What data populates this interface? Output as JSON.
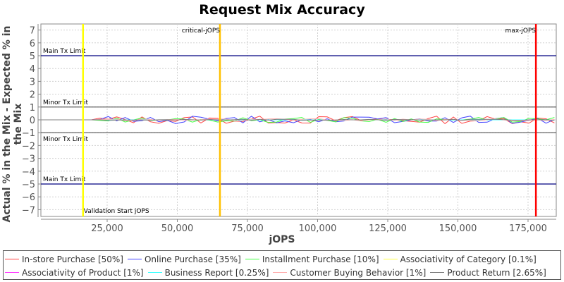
{
  "chart": {
    "title": "Request Mix Accuracy",
    "xlabel": "jOPS",
    "ylabel": "Actual % in the Mix - Expected % in the Mix"
  },
  "legend": {
    "row1": [
      {
        "label": "In-store Purchase [50%]",
        "color": "#ff4040"
      },
      {
        "label": "Online Purchase [35%]",
        "color": "#4040ff"
      },
      {
        "label": "Installment Purchase [10%]",
        "color": "#40ff40"
      },
      {
        "label": "Associativity of Category [0.1%]",
        "color": "#ffff40"
      }
    ],
    "row2": [
      {
        "label": "Associativity of Product [1%]",
        "color": "#ff40ff"
      },
      {
        "label": "Business Report [0.25%]",
        "color": "#40ffff"
      },
      {
        "label": "Customer Buying Behavior [1%]",
        "color": "#ffafaf"
      },
      {
        "label": "Product Return [2.65%]",
        "color": "#808080"
      }
    ]
  },
  "annotations": {
    "main_tx_upper": "Main Tx Limit",
    "minor_tx_upper": "Minor Tx Limit",
    "minor_tx_lower": "Minor Tx Limit",
    "main_tx_lower": "Main Tx Limit",
    "validation_start": "Validation Start jOPS",
    "critical": "critical-jOPS",
    "max": "max-jOPS"
  },
  "chart_data": {
    "type": "line",
    "title": "Request Mix Accuracy",
    "xlabel": "jOPS",
    "ylabel": "Actual % in the Mix - Expected % in the Mix",
    "xlim": [
      1400,
      185000
    ],
    "ylim": [
      -7.5,
      7.5
    ],
    "x_ticks": [
      "25,000",
      "50,000",
      "75,000",
      "100,000",
      "125,000",
      "150,000",
      "175,000"
    ],
    "y_ticks": [
      7,
      6,
      5,
      4,
      3,
      2,
      1,
      0,
      -1,
      -2,
      -3,
      -4,
      -5,
      -6,
      -7
    ],
    "grid": true,
    "legend_position": "bottom",
    "horizontal_lines": [
      {
        "label": "Main Tx Limit",
        "y": 5,
        "color": "#000080"
      },
      {
        "label": "Minor Tx Limit",
        "y": 1,
        "color": "#555555"
      },
      {
        "label": "Minor Tx Limit",
        "y": -1,
        "color": "#555555"
      },
      {
        "label": "Main Tx Limit",
        "y": -5,
        "color": "#000080"
      }
    ],
    "vertical_lines": [
      {
        "label": "Validation Start jOPS",
        "x": 16400,
        "color": "#ffff00"
      },
      {
        "label": "critical-jOPS",
        "x": 65200,
        "color": "#ffc000"
      },
      {
        "label": "max-jOPS",
        "x": 177800,
        "color": "#ff0000"
      }
    ],
    "series": [
      {
        "name": "In-store Purchase [50%]",
        "color": "#ff4040",
        "approx_range": [
          -0.3,
          0.3
        ]
      },
      {
        "name": "Online Purchase [35%]",
        "color": "#4040ff",
        "approx_range": [
          -0.3,
          0.3
        ]
      },
      {
        "name": "Installment Purchase [10%]",
        "color": "#40ff40",
        "approx_range": [
          -0.15,
          0.2
        ]
      },
      {
        "name": "Associativity of Category [0.1%]",
        "color": "#ffff40",
        "approx_range": [
          0,
          0
        ]
      },
      {
        "name": "Associativity of Product [1%]",
        "color": "#ff40ff",
        "approx_range": [
          0,
          0
        ]
      },
      {
        "name": "Business Report [0.25%]",
        "color": "#40ffff",
        "approx_range": [
          0,
          0
        ]
      },
      {
        "name": "Customer Buying Behavior [1%]",
        "color": "#ffafaf",
        "approx_range": [
          -0.1,
          0.1
        ]
      },
      {
        "name": "Product Return [2.65%]",
        "color": "#808080",
        "approx_range": [
          -0.05,
          0.05
        ]
      }
    ]
  }
}
